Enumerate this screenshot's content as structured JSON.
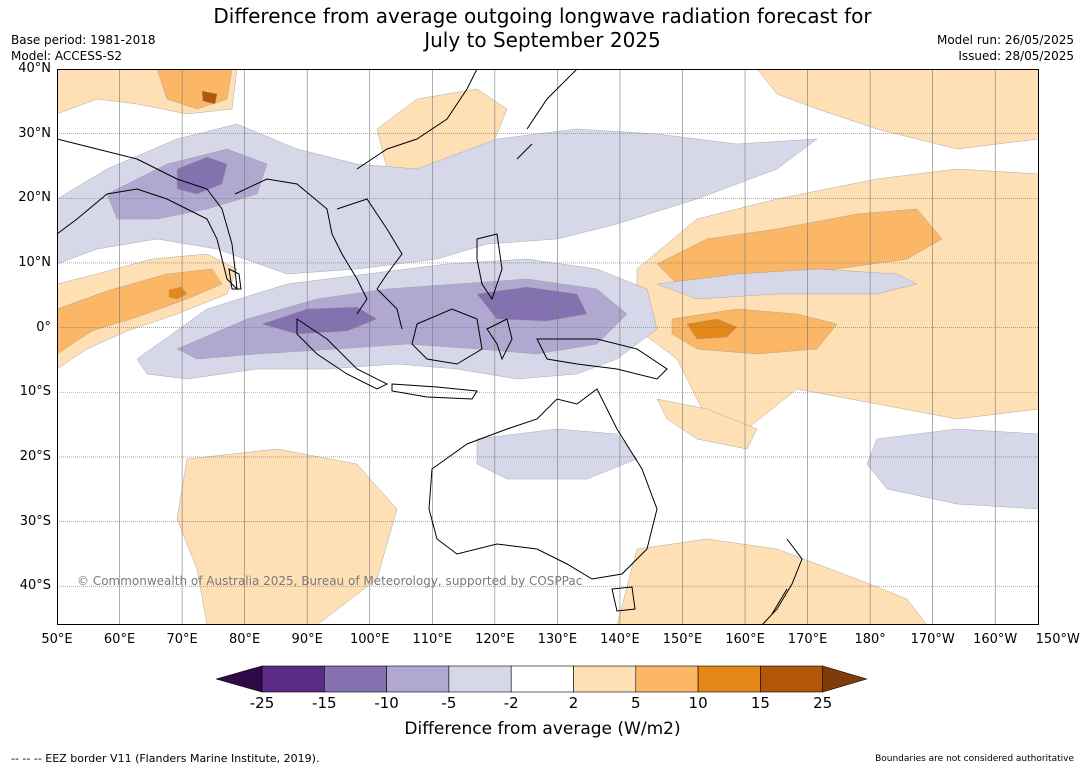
{
  "title_line1": "Difference from average outgoing longwave radiation forecast for",
  "title_line2": "July to September 2025",
  "meta_left": {
    "base_period": "Base period: 1981-2018",
    "model": "Model: ACCESS-S2"
  },
  "meta_right": {
    "model_run": "Model run: 26/05/2025",
    "issued": "Issued: 28/05/2025"
  },
  "map": {
    "lon_range": [
      50,
      207
    ],
    "lat_range": [
      -46,
      40
    ],
    "lat_labels": [
      {
        "lat": 40,
        "text": "40°N"
      },
      {
        "lat": 30,
        "text": "30°N"
      },
      {
        "lat": 20,
        "text": "20°N"
      },
      {
        "lat": 10,
        "text": "10°N"
      },
      {
        "lat": 0,
        "text": "0°"
      },
      {
        "lat": -10,
        "text": "10°S"
      },
      {
        "lat": -20,
        "text": "20°S"
      },
      {
        "lat": -30,
        "text": "30°S"
      },
      {
        "lat": -40,
        "text": "40°S"
      }
    ],
    "lon_labels": [
      {
        "lon": 50,
        "text": "50°E"
      },
      {
        "lon": 60,
        "text": "60°E"
      },
      {
        "lon": 70,
        "text": "70°E"
      },
      {
        "lon": 80,
        "text": "80°E"
      },
      {
        "lon": 90,
        "text": "90°E"
      },
      {
        "lon": 100,
        "text": "100°E"
      },
      {
        "lon": 110,
        "text": "110°E"
      },
      {
        "lon": 120,
        "text": "120°E"
      },
      {
        "lon": 130,
        "text": "130°E"
      },
      {
        "lon": 140,
        "text": "140°E"
      },
      {
        "lon": 150,
        "text": "150°E"
      },
      {
        "lon": 160,
        "text": "160°E"
      },
      {
        "lon": 170,
        "text": "170°E"
      },
      {
        "lon": 180,
        "text": "180°"
      },
      {
        "lon": 190,
        "text": "170°W"
      },
      {
        "lon": 200,
        "text": "160°W"
      },
      {
        "lon": 210,
        "text": "150°W"
      }
    ],
    "colors": {
      "neg25": "#2e0a4a",
      "neg15": "#5b2a86",
      "neg10": "#8471b0",
      "neg5": "#b1a8d1",
      "neg2": "#d7d7ea",
      "zero": "#ffffff",
      "pos2": "#fee0b4",
      "pos5": "#fbb765",
      "pos10": "#e38817",
      "pos15": "#b35609",
      "pos25": "#7f3b08",
      "land": "#000000",
      "grid": "#777777"
    }
  },
  "copyright": "© Commonwealth of Australia 2025, Bureau of Meteorology, supported by COSPPac",
  "colorbar": {
    "labels": [
      "-25",
      "-15",
      "-10",
      "-5",
      "-2",
      "2",
      "5",
      "10",
      "15",
      "25"
    ],
    "title": "Difference from average (W/m2)"
  },
  "footer_left": "--  --  -- EEZ border V11 (Flanders Marine Institute, 2019).",
  "footer_right": "Boundaries are not considered authoritative"
}
